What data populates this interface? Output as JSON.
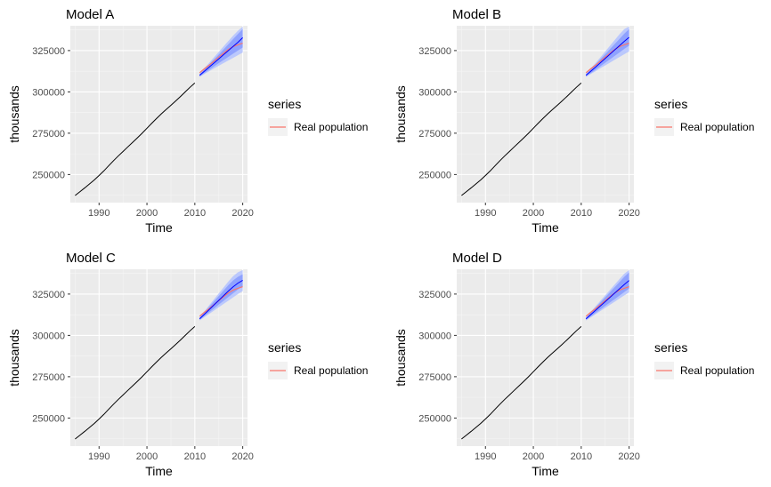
{
  "chart_data": [
    {
      "type": "line",
      "title": "Model A",
      "xlabel": "Time",
      "ylabel": "thousands",
      "xlim": [
        1984,
        2021
      ],
      "ylim": [
        233000,
        340000
      ],
      "x_ticks": [
        1990,
        2000,
        2010,
        2020
      ],
      "y_ticks": [
        250000,
        275000,
        300000,
        325000
      ],
      "x_tick_labels": [
        "1990",
        "2000",
        "2010",
        "2020"
      ],
      "y_tick_labels": [
        "250000",
        "275000",
        "300000",
        "325000"
      ],
      "grid": true,
      "legend": {
        "title": "series",
        "placement": "right",
        "entries": [
          "Real population"
        ]
      },
      "series": [
        {
          "name": "",
          "color": "#000000",
          "x": [
            1985,
            1986,
            1987,
            1988,
            1989,
            1990,
            1991,
            1992,
            1993,
            1994,
            1995,
            1996,
            1997,
            1998,
            1999,
            2000,
            2001,
            2002,
            2003,
            2004,
            2005,
            2006,
            2007,
            2008,
            2009,
            2010
          ],
          "values": [
            237300,
            239600,
            241900,
            244300,
            246700,
            249400,
            252200,
            255300,
            258300,
            261200,
            263900,
            266700,
            269400,
            272200,
            275000,
            278000,
            281000,
            283900,
            286700,
            289300,
            291900,
            294500,
            297200,
            300000,
            302800,
            305400
          ]
        },
        {
          "name": "Real population",
          "color": "#f8766d",
          "x": [
            2011,
            2012,
            2013,
            2014,
            2015,
            2016,
            2017,
            2018,
            2019,
            2020
          ],
          "values": [
            311600,
            314000,
            316200,
            318600,
            321000,
            323400,
            325700,
            327400,
            328500,
            329500
          ]
        },
        {
          "name": "",
          "color": "#0000ff",
          "x": [
            2011,
            2012,
            2013,
            2014,
            2015,
            2016,
            2017,
            2018,
            2019,
            2020
          ],
          "values": [
            310000,
            312500,
            315000,
            317500,
            320000,
            322500,
            325000,
            327500,
            330000,
            332800
          ]
        }
      ],
      "bands": [
        {
          "level": 95,
          "color": "#b3c2ff",
          "x": [
            2011,
            2012,
            2013,
            2014,
            2015,
            2016,
            2017,
            2018,
            2019,
            2020
          ],
          "lower": [
            309000,
            310800,
            312500,
            314200,
            315800,
            317400,
            319000,
            320600,
            322200,
            323800
          ],
          "upper": [
            311000,
            314300,
            317600,
            320900,
            324200,
            327500,
            330800,
            334000,
            337000,
            339500
          ]
        },
        {
          "level": 80,
          "color": "#8096ff",
          "x": [
            2011,
            2012,
            2013,
            2014,
            2015,
            2016,
            2017,
            2018,
            2019,
            2020
          ],
          "lower": [
            309400,
            311400,
            313400,
            315400,
            317400,
            319300,
            321200,
            323100,
            325000,
            326800
          ],
          "upper": [
            310600,
            313600,
            316600,
            319600,
            322600,
            325700,
            328800,
            331900,
            335000,
            338000
          ]
        }
      ]
    },
    {
      "type": "line",
      "title": "Model B",
      "xlabel": "Time",
      "ylabel": "thousands",
      "xlim": [
        1984,
        2021
      ],
      "ylim": [
        233000,
        340000
      ],
      "x_ticks": [
        1990,
        2000,
        2010,
        2020
      ],
      "y_ticks": [
        250000,
        275000,
        300000,
        325000
      ],
      "x_tick_labels": [
        "1990",
        "2000",
        "2010",
        "2020"
      ],
      "y_tick_labels": [
        "250000",
        "275000",
        "300000",
        "325000"
      ],
      "grid": true,
      "legend": {
        "title": "series",
        "placement": "right",
        "entries": [
          "Real population"
        ]
      },
      "series": [
        {
          "name": "",
          "color": "#000000",
          "x": [
            1985,
            1986,
            1987,
            1988,
            1989,
            1990,
            1991,
            1992,
            1993,
            1994,
            1995,
            1996,
            1997,
            1998,
            1999,
            2000,
            2001,
            2002,
            2003,
            2004,
            2005,
            2006,
            2007,
            2008,
            2009,
            2010
          ],
          "values": [
            237300,
            239600,
            241900,
            244300,
            246700,
            249400,
            252200,
            255300,
            258300,
            261200,
            263900,
            266700,
            269400,
            272200,
            275000,
            278000,
            281000,
            283900,
            286700,
            289300,
            291900,
            294500,
            297200,
            300000,
            302800,
            305400
          ]
        },
        {
          "name": "Real population",
          "color": "#f8766d",
          "x": [
            2011,
            2012,
            2013,
            2014,
            2015,
            2016,
            2017,
            2018,
            2019,
            2020
          ],
          "values": [
            311600,
            314000,
            316200,
            318600,
            321000,
            323400,
            325700,
            327400,
            328500,
            329500
          ]
        },
        {
          "name": "",
          "color": "#0000ff",
          "x": [
            2011,
            2012,
            2013,
            2014,
            2015,
            2016,
            2017,
            2018,
            2019,
            2020
          ],
          "values": [
            310000,
            312500,
            315000,
            317600,
            320200,
            322800,
            325400,
            328000,
            330600,
            333000
          ]
        }
      ],
      "bands": [
        {
          "level": 95,
          "color": "#b3c2ff",
          "x": [
            2011,
            2012,
            2013,
            2014,
            2015,
            2016,
            2017,
            2018,
            2019,
            2020
          ],
          "lower": [
            309000,
            310800,
            312500,
            314300,
            316000,
            317700,
            319400,
            321100,
            322800,
            324500
          ],
          "upper": [
            311000,
            314200,
            317500,
            320900,
            324400,
            327900,
            331400,
            334900,
            338000,
            339500
          ]
        },
        {
          "level": 80,
          "color": "#8096ff",
          "x": [
            2011,
            2012,
            2013,
            2014,
            2015,
            2016,
            2017,
            2018,
            2019,
            2020
          ],
          "lower": [
            309400,
            311400,
            313400,
            315500,
            317600,
            319700,
            321800,
            323900,
            326000,
            328000
          ],
          "upper": [
            310600,
            313600,
            316600,
            319700,
            322800,
            325900,
            329000,
            332100,
            335200,
            338000
          ]
        }
      ]
    },
    {
      "type": "line",
      "title": "Model C",
      "xlabel": "Time",
      "ylabel": "thousands",
      "xlim": [
        1984,
        2021
      ],
      "ylim": [
        233000,
        340000
      ],
      "x_ticks": [
        1990,
        2000,
        2010,
        2020
      ],
      "y_ticks": [
        250000,
        275000,
        300000,
        325000
      ],
      "x_tick_labels": [
        "1990",
        "2000",
        "2010",
        "2020"
      ],
      "y_tick_labels": [
        "250000",
        "275000",
        "300000",
        "325000"
      ],
      "grid": true,
      "legend": {
        "title": "series",
        "placement": "right",
        "entries": [
          "Real population"
        ]
      },
      "series": [
        {
          "name": "",
          "color": "#000000",
          "x": [
            1985,
            1986,
            1987,
            1988,
            1989,
            1990,
            1991,
            1992,
            1993,
            1994,
            1995,
            1996,
            1997,
            1998,
            1999,
            2000,
            2001,
            2002,
            2003,
            2004,
            2005,
            2006,
            2007,
            2008,
            2009,
            2010
          ],
          "values": [
            237300,
            239600,
            241900,
            244300,
            246700,
            249400,
            252200,
            255300,
            258300,
            261200,
            263900,
            266700,
            269400,
            272200,
            275000,
            278000,
            281000,
            283900,
            286700,
            289300,
            291900,
            294500,
            297200,
            300000,
            302800,
            305400
          ]
        },
        {
          "name": "Real population",
          "color": "#f8766d",
          "x": [
            2011,
            2012,
            2013,
            2014,
            2015,
            2016,
            2017,
            2018,
            2019,
            2020
          ],
          "values": [
            311600,
            314000,
            316200,
            318600,
            321000,
            323400,
            325700,
            327400,
            328500,
            329500
          ]
        },
        {
          "name": "",
          "color": "#0000ff",
          "x": [
            2011,
            2012,
            2013,
            2014,
            2015,
            2016,
            2017,
            2018,
            2019,
            2020
          ],
          "values": [
            310000,
            312800,
            315600,
            318400,
            321200,
            324000,
            326800,
            329400,
            331600,
            333300
          ]
        }
      ],
      "bands": [
        {
          "level": 95,
          "color": "#b3c2ff",
          "x": [
            2011,
            2012,
            2013,
            2014,
            2015,
            2016,
            2017,
            2018,
            2019,
            2020
          ],
          "lower": [
            309000,
            311000,
            313000,
            315000,
            317000,
            319000,
            321000,
            323000,
            325000,
            326800
          ],
          "upper": [
            311000,
            314600,
            318200,
            321800,
            325400,
            329000,
            332600,
            335800,
            338200,
            339500
          ]
        },
        {
          "level": 80,
          "color": "#8096ff",
          "x": [
            2011,
            2012,
            2013,
            2014,
            2015,
            2016,
            2017,
            2018,
            2019,
            2020
          ],
          "lower": [
            309400,
            311700,
            314000,
            316300,
            318600,
            320900,
            323200,
            325500,
            327800,
            329800
          ]
        },
        {
          "level": 80,
          "upper": [
            310600,
            313900,
            317200,
            320500,
            323800,
            327100,
            330400,
            333300,
            335400,
            337000
          ]
        }
      ]
    },
    {
      "type": "line",
      "title": "Model D",
      "xlabel": "Time",
      "ylabel": "thousands",
      "xlim": [
        1984,
        2021
      ],
      "ylim": [
        233000,
        340000
      ],
      "x_ticks": [
        1990,
        2000,
        2010,
        2020
      ],
      "y_ticks": [
        250000,
        275000,
        300000,
        325000
      ],
      "x_tick_labels": [
        "1990",
        "2000",
        "2010",
        "2020"
      ],
      "y_tick_labels": [
        "250000",
        "275000",
        "300000",
        "325000"
      ],
      "grid": true,
      "legend": {
        "title": "series",
        "placement": "right",
        "entries": [
          "Real population"
        ]
      },
      "series": [
        {
          "name": "",
          "color": "#000000",
          "x": [
            1985,
            1986,
            1987,
            1988,
            1989,
            1990,
            1991,
            1992,
            1993,
            1994,
            1995,
            1996,
            1997,
            1998,
            1999,
            2000,
            2001,
            2002,
            2003,
            2004,
            2005,
            2006,
            2007,
            2008,
            2009,
            2010
          ],
          "values": [
            237300,
            239600,
            241900,
            244300,
            246700,
            249400,
            252200,
            255300,
            258300,
            261200,
            263900,
            266700,
            269400,
            272200,
            275000,
            278000,
            281000,
            283900,
            286700,
            289300,
            291900,
            294500,
            297200,
            300000,
            302800,
            305400
          ]
        },
        {
          "name": "Real population",
          "color": "#f8766d",
          "x": [
            2011,
            2012,
            2013,
            2014,
            2015,
            2016,
            2017,
            2018,
            2019,
            2020
          ],
          "values": [
            311600,
            314000,
            316200,
            318600,
            321000,
            323400,
            325700,
            327400,
            328500,
            329500
          ]
        },
        {
          "name": "",
          "color": "#0000ff",
          "x": [
            2011,
            2012,
            2013,
            2014,
            2015,
            2016,
            2017,
            2018,
            2019,
            2020
          ],
          "values": [
            310000,
            312600,
            315200,
            317800,
            320400,
            323000,
            325600,
            328200,
            330800,
            333200
          ]
        }
      ],
      "bands": [
        {
          "level": 95,
          "color": "#b3c2ff",
          "x": [
            2011,
            2012,
            2013,
            2014,
            2015,
            2016,
            2017,
            2018,
            2019,
            2020
          ],
          "lower": [
            309000,
            310900,
            312800,
            314700,
            316600,
            318500,
            320400,
            322300,
            324200,
            326000
          ],
          "upper": [
            311000,
            314300,
            317600,
            320900,
            324200,
            327500,
            330800,
            334100,
            337300,
            339500
          ]
        },
        {
          "level": 80,
          "color": "#8096ff",
          "x": [
            2011,
            2012,
            2013,
            2014,
            2015,
            2016,
            2017,
            2018,
            2019,
            2020
          ],
          "lower": [
            309400,
            311500,
            313600,
            315700,
            317800,
            319900,
            322000,
            324100,
            326200,
            328300
          ],
          "upper": [
            310600,
            313700,
            316800,
            319900,
            323000,
            326100,
            329200,
            332300,
            335400,
            338100
          ]
        }
      ]
    }
  ]
}
